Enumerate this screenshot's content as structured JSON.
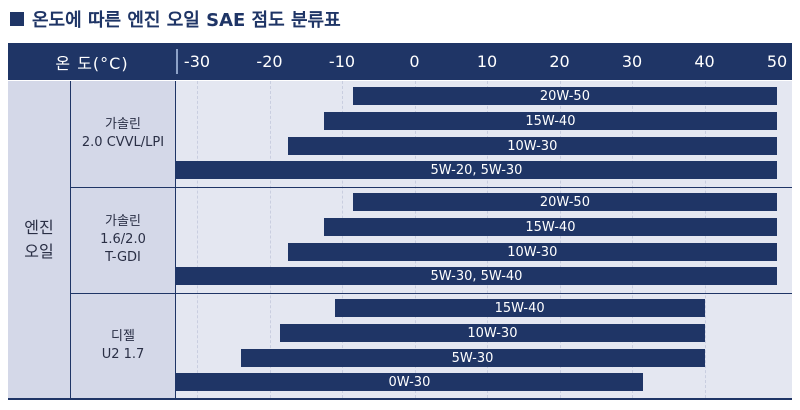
{
  "title": "온도에 따른 엔진 오일 SAE 점도 분류표",
  "header_label": "온  도(°C)",
  "engine_oil_label": "엔진\n오일",
  "chart_data": {
    "type": "bar",
    "title": "온도에 따른 엔진 오일 SAE 점도 분류표",
    "xlabel": "온 도(°C)",
    "ylabel": "엔진 오일",
    "xlim": [
      -35,
      50
    ],
    "x_ticks": [
      -30,
      -20,
      -10,
      0,
      10,
      20,
      30,
      40,
      50
    ],
    "groups": [
      {
        "label": "가솔린\n2.0 CVVL/LPI",
        "bars": [
          {
            "label": "20W-50",
            "x_start": -8.5,
            "x_end": 50
          },
          {
            "label": "15W-40",
            "x_start": -12.5,
            "x_end": 50
          },
          {
            "label": "10W-30",
            "x_start": -17.5,
            "x_end": 50
          },
          {
            "label": "5W-20, 5W-30",
            "x_start": -35,
            "x_end": 50
          }
        ]
      },
      {
        "label": "가솔린\n1.6/2.0\nT-GDI",
        "bars": [
          {
            "label": "20W-50",
            "x_start": -8.5,
            "x_end": 50
          },
          {
            "label": "15W-40",
            "x_start": -12.5,
            "x_end": 50
          },
          {
            "label": "10W-30",
            "x_start": -17.5,
            "x_end": 50
          },
          {
            "label": "5W-30, 5W-40",
            "x_start": -35,
            "x_end": 50
          }
        ]
      },
      {
        "label": "디젤\nU2 1.7",
        "bars": [
          {
            "label": "15W-40",
            "x_start": -11,
            "x_end": 40
          },
          {
            "label": "10W-30",
            "x_start": -18.5,
            "x_end": 40
          },
          {
            "label": "5W-30",
            "x_start": -24,
            "x_end": 40
          },
          {
            "label": "0W-30",
            "x_start": -35,
            "x_end": 31.5
          }
        ]
      }
    ],
    "colors": {
      "bar": "#1f3566",
      "header": "#1f3566",
      "plot_bg": "#e4e7f1",
      "label_bg": "#d4d8e8"
    }
  }
}
